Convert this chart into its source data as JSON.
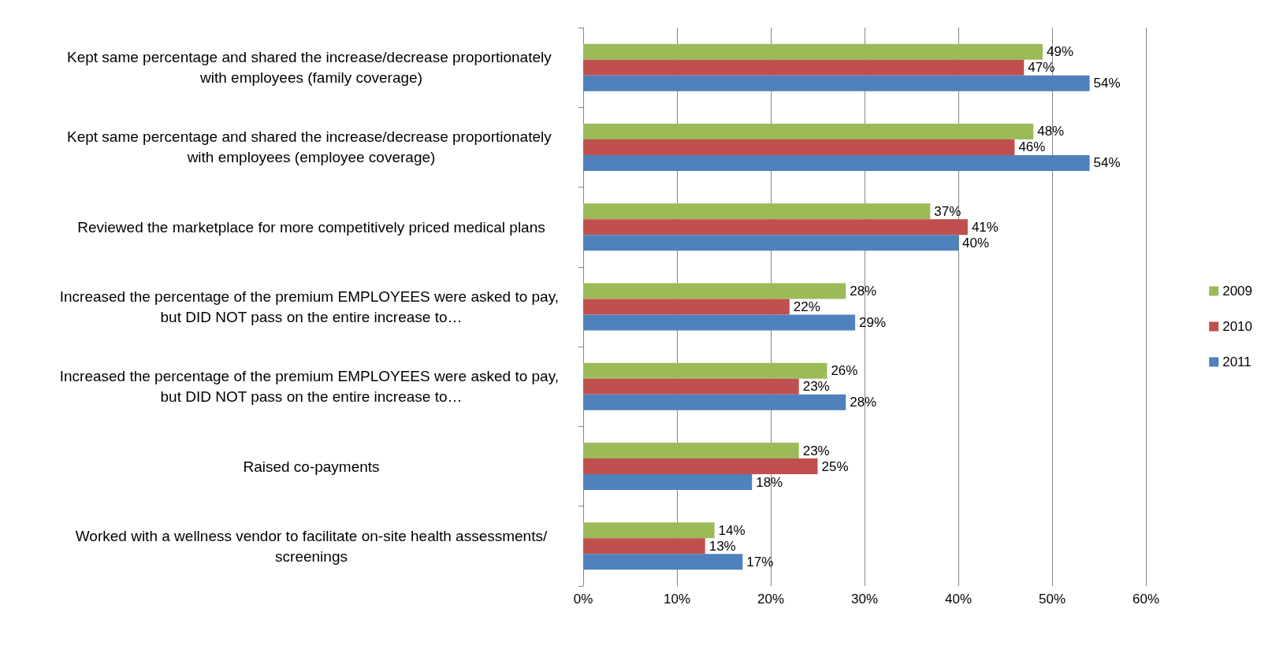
{
  "chart_data": {
    "type": "bar",
    "orientation": "horizontal",
    "categories": [
      "Kept same percentage and shared the increase/decrease proportionately with employees (family coverage)",
      "Kept same percentage and shared the increase/decrease proportionately with employees (employee coverage)",
      "Reviewed the marketplace for more competitively priced medical plans",
      "Increased the percentage of the premium EMPLOYEES were asked to pay, but DID NOT pass on the entire increase to…",
      "Increased the percentage of the premium EMPLOYEES were asked to pay, but DID NOT pass on the entire increase to…",
      "Raised co-payments",
      "Worked with a wellness vendor to facilitate on-site health assessments/screenings"
    ],
    "series": [
      {
        "name": "2009",
        "color": "#9bbb59",
        "values": [
          49,
          48,
          37,
          28,
          26,
          23,
          14
        ],
        "value_labels": [
          "49%",
          "48%",
          "37%",
          "28%",
          "26%",
          "23%",
          "14%"
        ]
      },
      {
        "name": "2010",
        "color": "#c0504d",
        "values": [
          47,
          46,
          41,
          22,
          23,
          25,
          13
        ],
        "value_labels": [
          "47%",
          "46%",
          "41%",
          "22%",
          "23%",
          "25%",
          "13%"
        ]
      },
      {
        "name": "2011",
        "color": "#4f81bd",
        "values": [
          54,
          54,
          40,
          29,
          28,
          18,
          17
        ],
        "value_labels": [
          "54%",
          "54%",
          "40%",
          "29%",
          "28%",
          "18%",
          "17%"
        ]
      }
    ],
    "xlim": [
      0,
      60
    ],
    "xticks": [
      {
        "value": 0,
        "label": "0%"
      },
      {
        "value": 10,
        "label": "10%"
      },
      {
        "value": 20,
        "label": "20%"
      },
      {
        "value": 30,
        "label": "30%"
      },
      {
        "value": 40,
        "label": "40%"
      },
      {
        "value": 50,
        "label": "50%"
      },
      {
        "value": 60,
        "label": "60%"
      }
    ],
    "grid": "x",
    "legend": "right"
  }
}
